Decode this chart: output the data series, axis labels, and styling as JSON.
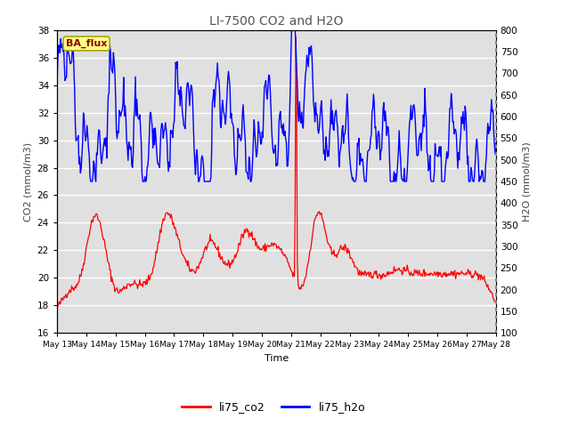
{
  "title": "LI-7500 CO2 and H2O",
  "xlabel": "Time",
  "ylabel_left": "CO2 (mmol/m3)",
  "ylabel_right": "H2O (mmol/m3)",
  "ylim_left": [
    16,
    38
  ],
  "ylim_right": [
    100,
    800
  ],
  "yticks_left": [
    16,
    18,
    20,
    22,
    24,
    26,
    28,
    30,
    32,
    34,
    36,
    38
  ],
  "yticks_right": [
    100,
    150,
    200,
    250,
    300,
    350,
    400,
    450,
    500,
    550,
    600,
    650,
    700,
    750,
    800
  ],
  "xtick_labels": [
    "May 13",
    "May 14",
    "May 15",
    "May 16",
    "May 17",
    "May 18",
    "May 19",
    "May 20",
    "May 21",
    "May 22",
    "May 23",
    "May 24",
    "May 25",
    "May 26",
    "May 27",
    "May 28"
  ],
  "legend_labels": [
    "li75_co2",
    "li75_h2o"
  ],
  "legend_colors": [
    "red",
    "blue"
  ],
  "annotation_text": "BA_flux",
  "annotation_bg": "#FFFF88",
  "annotation_border": "#AAAA00",
  "line_color_co2": "red",
  "line_color_h2o": "blue",
  "plot_bg_color": "#E0E0E0",
  "grid_color": "white",
  "title_color": "#555555",
  "n_points": 600,
  "seed": 42
}
